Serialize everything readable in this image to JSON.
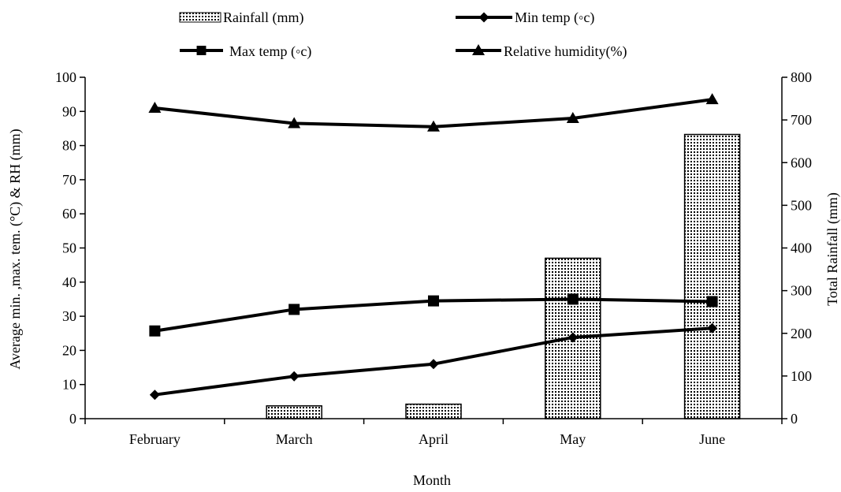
{
  "chart_data": {
    "type": "bar",
    "categories": [
      "February",
      "March",
      "April",
      "May",
      "June"
    ],
    "xlabel": "Month",
    "ylabel_left": "Average min. ,max. tem. (°C) &  RH (mm)",
    "ylabel_right": "Total Rainfall (mm)",
    "ylim_left": [
      0,
      100
    ],
    "ylim_right": [
      0,
      800
    ],
    "left_ticks": [
      "0",
      "10",
      "20",
      "30",
      "40",
      "50",
      "60",
      "70",
      "80",
      "90",
      "100"
    ],
    "right_ticks": [
      "0",
      "100",
      "200",
      "300",
      "400",
      "500",
      "600",
      "700",
      "800"
    ],
    "grid": false,
    "legend_position": "top",
    "bar_series": {
      "name": "Rainfall (mm)",
      "axis": "right",
      "values": [
        0,
        30,
        34,
        376,
        666
      ]
    },
    "line_series": [
      {
        "name": "Min temp (◦c)",
        "axis": "left",
        "marker": "diamond",
        "values": [
          7,
          12.4,
          16,
          23.8,
          26.5
        ]
      },
      {
        "name": "Max temp (◦c)",
        "axis": "left",
        "marker": "square",
        "values": [
          25.7,
          32,
          34.5,
          35,
          34.3
        ]
      },
      {
        "name": "Relative humidity(%)",
        "axis": "left",
        "marker": "triangle",
        "values": [
          91,
          86.5,
          85.5,
          88,
          93.5
        ]
      }
    ],
    "colors": {
      "line": "#000000",
      "bar_fill": "#ffffff",
      "bar_pattern": "#000000"
    }
  }
}
